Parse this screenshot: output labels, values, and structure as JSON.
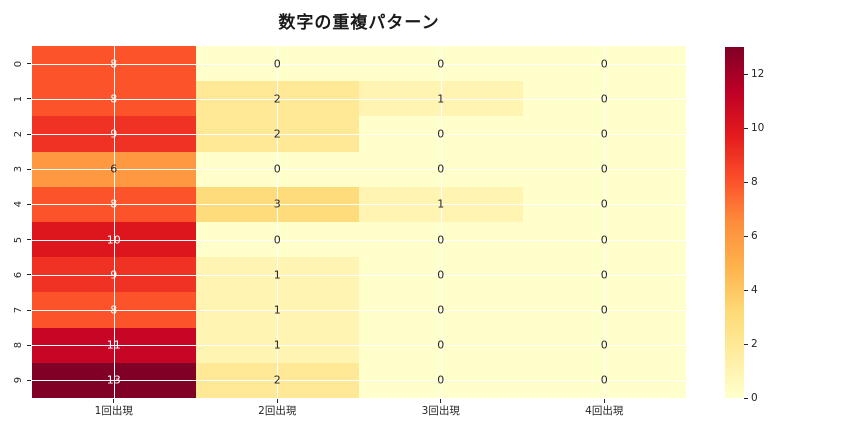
{
  "chart_data": {
    "type": "heatmap",
    "title": "数字の重複パターン",
    "row_labels": [
      "0",
      "1",
      "2",
      "3",
      "4",
      "5",
      "6",
      "7",
      "8",
      "9"
    ],
    "col_labels": [
      "1回出現",
      "2回出現",
      "3回出現",
      "4回出現"
    ],
    "values": [
      [
        8,
        0,
        0,
        0
      ],
      [
        8,
        2,
        1,
        0
      ],
      [
        9,
        2,
        0,
        0
      ],
      [
        6,
        0,
        0,
        0
      ],
      [
        8,
        3,
        1,
        0
      ],
      [
        10,
        0,
        0,
        0
      ],
      [
        9,
        1,
        0,
        0
      ],
      [
        8,
        1,
        0,
        0
      ],
      [
        11,
        1,
        0,
        0
      ],
      [
        13,
        2,
        0,
        0
      ]
    ],
    "vmin": 0,
    "vmax": 13,
    "colormap": "YlOrRd",
    "colorbar_ticks": [
      0,
      2,
      4,
      6,
      8,
      10,
      12
    ],
    "value_colors": {
      "0": "#ffffcc",
      "1": "#fff4b1",
      "2": "#ffe896",
      "3": "#fedc7c",
      "6": "#fe9841",
      "8": "#fc532b",
      "9": "#ef3223",
      "10": "#dd161e",
      "11": "#c60624",
      "13": "#800026"
    },
    "gradient_stops": [
      "#ffffcc",
      "#ffeda0",
      "#fed976",
      "#feb24c",
      "#fd8d3c",
      "#fc4e2a",
      "#e31a1c",
      "#bd0026",
      "#800026"
    ],
    "annotation_dark_color": "#262626",
    "annotation_light_color": "#ffffff",
    "white_text_min_value": 8,
    "gridline_color": "#ffffff",
    "legend_position": "right",
    "grid": true
  }
}
